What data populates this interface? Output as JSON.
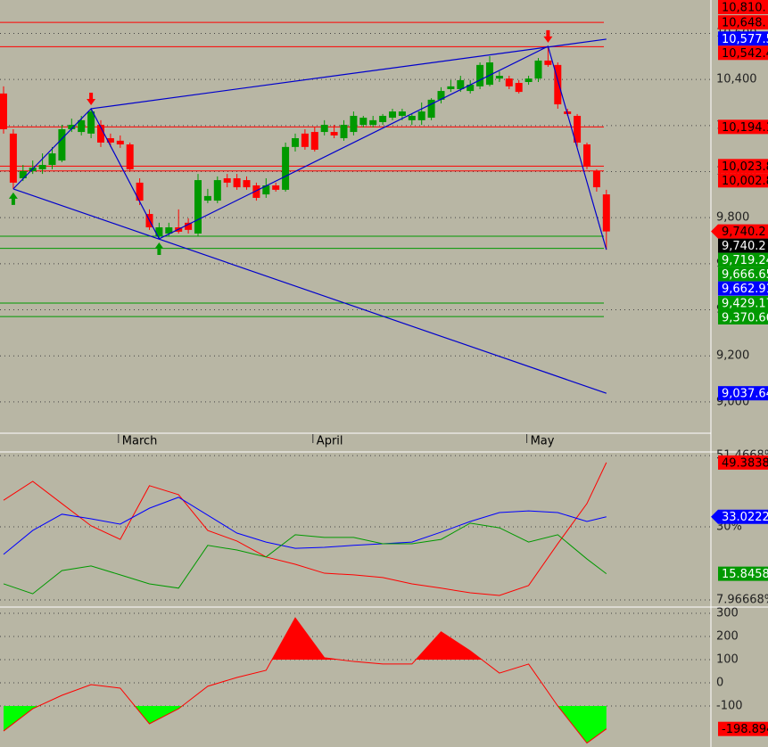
{
  "chart_data": [
    {
      "type": "candlestick",
      "x": [
        null,
        null,
        null,
        null,
        null,
        null,
        null,
        null,
        null,
        null,
        null,
        null,
        "March",
        null,
        null,
        null,
        null,
        null,
        null,
        null,
        null,
        null,
        null,
        null,
        null,
        null,
        null,
        null,
        null,
        null,
        null,
        null,
        "April",
        null,
        null,
        null,
        null,
        null,
        null,
        null,
        null,
        null,
        null,
        null,
        null,
        null,
        null,
        null,
        null,
        null,
        null,
        null,
        null,
        null,
        "May",
        null,
        null,
        null,
        null,
        null,
        null,
        null,
        null
      ],
      "open": [
        10339,
        10165,
        9971,
        10002,
        10010,
        10029,
        10048,
        10184,
        10172,
        10165,
        10203,
        10145,
        10134,
        10118,
        9952,
        9816,
        9719,
        9731,
        9758,
        9778,
        9731,
        9874,
        9874,
        9971,
        9971,
        9963,
        9940,
        9901,
        9940,
        9921,
        10107,
        10165,
        10172,
        10172,
        10172,
        10145,
        10172,
        10203,
        10203,
        10215,
        10234,
        10242,
        10223,
        10223,
        10234,
        10312,
        10358,
        10358,
        10350,
        10370,
        10377,
        10404,
        10404,
        10385,
        10389,
        10404,
        10482,
        10463,
        10261,
        10242,
        10118,
        10002,
        9901
      ],
      "high": [
        10370,
        10184,
        10029,
        10048,
        10079,
        10107,
        10203,
        10230,
        10242,
        10273,
        10223,
        10165,
        10157,
        10126,
        9971,
        9836,
        9778,
        9778,
        9836,
        9797,
        9990,
        9925,
        9979,
        9990,
        9990,
        9979,
        9952,
        9971,
        9952,
        10126,
        10165,
        10184,
        10192,
        10223,
        10203,
        10223,
        10261,
        10242,
        10242,
        10250,
        10273,
        10273,
        10250,
        10300,
        10319,
        10366,
        10397,
        10416,
        10397,
        10474,
        10501,
        10435,
        10416,
        10397,
        10416,
        10493,
        10544,
        10474,
        10273,
        10250,
        10126,
        10010,
        9921
      ],
      "low": [
        10165,
        9925,
        9959,
        9990,
        9990,
        10010,
        10041,
        10172,
        10157,
        10145,
        10107,
        10107,
        10103,
        10002,
        9855,
        9747,
        9708,
        9719,
        9731,
        9731,
        9719,
        9863,
        9863,
        9932,
        9921,
        9921,
        9874,
        9886,
        9913,
        9913,
        10087,
        10095,
        10087,
        10157,
        10145,
        10134,
        10157,
        10192,
        10192,
        10203,
        10223,
        10223,
        10203,
        10203,
        10223,
        10296,
        10346,
        10346,
        10339,
        10358,
        10370,
        10389,
        10358,
        10339,
        10377,
        10389,
        10455,
        10273,
        10242,
        10107,
        10010,
        9913,
        9661
      ],
      "close": [
        10184,
        9952,
        10002,
        10017,
        10029,
        10079,
        10184,
        10203,
        10223,
        10261,
        10126,
        10126,
        10118,
        10010,
        9874,
        9758,
        9758,
        9758,
        9739,
        9747,
        9963,
        9894,
        9963,
        9952,
        9932,
        9932,
        9886,
        9940,
        9921,
        10107,
        10145,
        10107,
        10095,
        10203,
        10157,
        10203,
        10242,
        10234,
        10223,
        10242,
        10261,
        10261,
        10242,
        10261,
        10312,
        10350,
        10370,
        10397,
        10377,
        10463,
        10474,
        10416,
        10370,
        10346,
        10404,
        10482,
        10463,
        10292,
        10250,
        10126,
        10021,
        9932,
        9740.2
      ],
      "up_color": "#009900",
      "down_color": "#ff0000",
      "ylim": [
        8868,
        10745
      ],
      "yticks": [
        {
          "value": 10600,
          "label": "10,600"
        },
        {
          "value": 10400,
          "label": "10,400"
        },
        {
          "value": 10200,
          "label": "10,200"
        },
        {
          "value": 10000,
          "label": "10,000"
        },
        {
          "value": 9800,
          "label": "9,800"
        },
        {
          "value": 9600,
          "label": "9,600"
        },
        {
          "value": 9400,
          "label": "9,400"
        },
        {
          "value": 9200,
          "label": "9,200"
        },
        {
          "value": 9000,
          "label": "9,000"
        }
      ],
      "grid": true,
      "trendlines": [
        {
          "color": "#0000cc",
          "points": [
            [
              1,
              9925
            ],
            [
              9,
              10273
            ],
            [
              16,
              9708
            ],
            [
              56,
              10544
            ],
            [
              62,
              9661
            ]
          ]
        },
        {
          "color": "#0000cc",
          "points": [
            [
              9,
              10273
            ],
            [
              62,
              10575
            ]
          ]
        },
        {
          "color": "#0000cc",
          "points": [
            [
              1,
              9925
            ],
            [
              62,
              9037.64
            ]
          ]
        }
      ],
      "sell_signals": [
        9,
        56
      ],
      "buy_signals": [
        1,
        16
      ],
      "levels": [
        {
          "value": 10810,
          "label": "10,810.",
          "color": "#ff0000",
          "text_color": "#000000",
          "line": false
        },
        {
          "value": 10648,
          "label": "10,648.",
          "color": "#ff0000",
          "text_color": "#000000",
          "line": true
        },
        {
          "value": 10577.5,
          "label": "10,577.5",
          "color": "#0000ff",
          "text_color": "#ffffff",
          "line": false
        },
        {
          "value": 10542.4,
          "label": "10,542.4",
          "color": "#ff0000",
          "text_color": "#000000",
          "line": true
        },
        {
          "value": 10194.1,
          "label": "10,194.1",
          "color": "#ff0000",
          "text_color": "#000000",
          "line": true
        },
        {
          "value": 10023.8,
          "label": "10,023.8",
          "color": "#ff0000",
          "text_color": "#000000",
          "line": true
        },
        {
          "value": 10002.8,
          "label": "10,002.8",
          "color": "#ff0000",
          "text_color": "#000000",
          "line": true
        },
        {
          "value": 9740.2,
          "label": "9,740.2",
          "color": "#ff0000",
          "text_color": "#000000",
          "line": false,
          "pointer": true
        },
        {
          "value": 9740.2,
          "label": "9,740.2",
          "color": "#000000",
          "text_color": "#ffffff",
          "line": false
        },
        {
          "value": 9719.24,
          "label": "9,719.24",
          "color": "#009900",
          "text_color": "#ffffff",
          "line": true
        },
        {
          "value": 9666.65,
          "label": "9,666.65",
          "color": "#009900",
          "text_color": "#ffffff",
          "line": true
        },
        {
          "value": 9662.91,
          "label": "9,662.91",
          "color": "#0000ff",
          "text_color": "#ffffff",
          "line": false
        },
        {
          "value": 9429.17,
          "label": "9,429.17",
          "color": "#009900",
          "text_color": "#ffffff",
          "line": true
        },
        {
          "value": 9370.66,
          "label": "9,370.66",
          "color": "#009900",
          "text_color": "#ffffff",
          "line": true
        },
        {
          "value": 9037.64,
          "label": "9,037.64",
          "color": "#0000ff",
          "text_color": "#ffffff",
          "line": false
        }
      ]
    },
    {
      "type": "line",
      "x": [
        0,
        3,
        6,
        9,
        12,
        15,
        18,
        21,
        24,
        27,
        30,
        33,
        36,
        39,
        42,
        45,
        48,
        51,
        54,
        57,
        60,
        62
      ],
      "xlim": [
        -0.367,
        72.752
      ],
      "ylim": [
        6.07,
        52.3
      ],
      "yticks": [
        {
          "value": 51.4668,
          "label": "51.4668%"
        },
        {
          "value": 30,
          "label": "30%"
        },
        {
          "value": 7.96668,
          "label": "7.96668%"
        }
      ],
      "grid": true,
      "series": [
        {
          "color": "#ff0000",
          "values": [
            38,
            43.7,
            37.0,
            30.3,
            26.2,
            42.4,
            39.7,
            28.9,
            25.7,
            20.9,
            18.7,
            16.0,
            15.5,
            14.7,
            12.8,
            11.5,
            10.1,
            9.3,
            12.3,
            24.9,
            37.0,
            49.3838
          ],
          "last_label": 49.3838
        },
        {
          "color": "#0000ff",
          "values": [
            21.7,
            28.9,
            33.8,
            32.4,
            30.8,
            35.6,
            38.9,
            33.5,
            28.1,
            25.4,
            23.5,
            23.8,
            24.4,
            24.9,
            25.4,
            28.4,
            31.6,
            34.3,
            34.8,
            34.3,
            31.6,
            33.0222
          ],
          "last_label": 33.0222,
          "pointer": true
        },
        {
          "color": "#009900",
          "values": [
            12.8,
            9.8,
            16.8,
            18.2,
            15.5,
            12.8,
            11.5,
            24.4,
            23.0,
            20.9,
            27.6,
            26.8,
            26.8,
            24.9,
            24.9,
            26.2,
            31.1,
            29.7,
            25.4,
            27.6,
            20.3,
            15.8458
          ],
          "last_label": 15.8458
        }
      ]
    },
    {
      "type": "line",
      "x": [
        0,
        3,
        6,
        9,
        12,
        15,
        18,
        21,
        24,
        27,
        30,
        33,
        36,
        39,
        42,
        45,
        48,
        51,
        54,
        57,
        60,
        62
      ],
      "xlim": [
        -0.367,
        72.752
      ],
      "ylim": [
        -277,
        323
      ],
      "yticks": [
        300,
        200,
        100,
        0,
        -100
      ],
      "grid": true,
      "fill_above": 100,
      "fill_above_color": "#ff0000",
      "fill_below": -100,
      "fill_below_color": "#00ff00",
      "series": [
        {
          "color": "#ff0000",
          "values": [
            -208,
            -112,
            -54,
            -8,
            -23,
            -177,
            -112,
            -15,
            23,
            54,
            280,
            108,
            92,
            81,
            81,
            220,
            138,
            42,
            81,
            -100,
            -260,
            -198.894
          ],
          "last_label": -198.894
        }
      ]
    }
  ]
}
